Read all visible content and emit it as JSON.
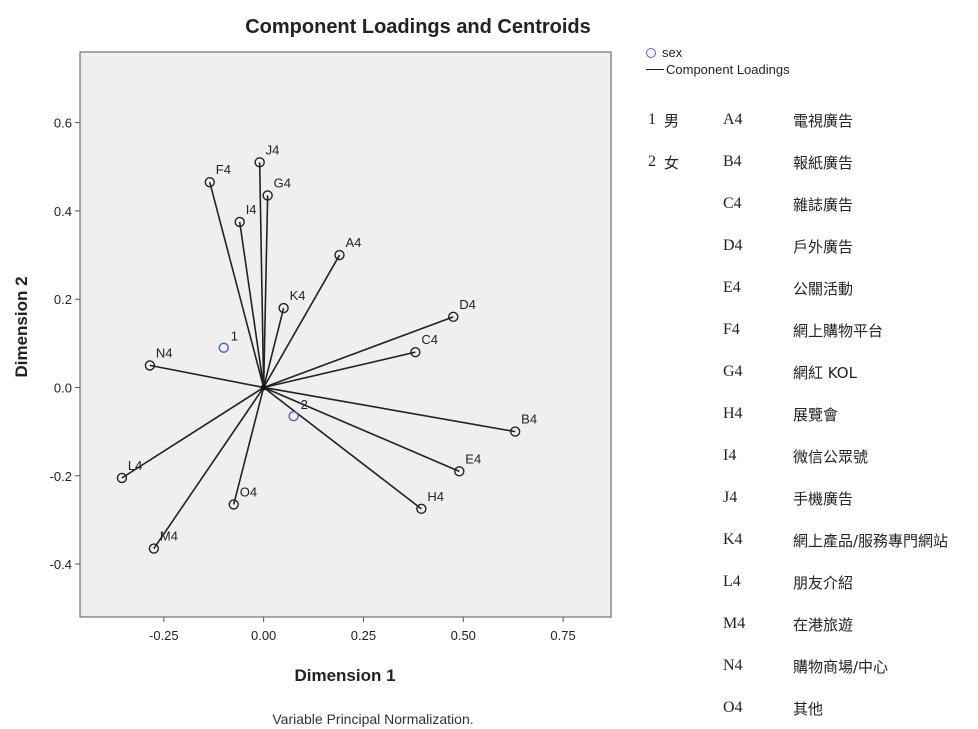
{
  "chart_data": {
    "type": "scatter",
    "title": "Component Loadings and Centroids",
    "xlabel": "Dimension 1",
    "ylabel": "Dimension 2",
    "footnote": "Variable Principal Normalization.",
    "xlim": [
      -0.46,
      0.87
    ],
    "ylim": [
      -0.52,
      0.76
    ],
    "xticks": [
      -0.25,
      0.0,
      0.25,
      0.5,
      0.75
    ],
    "xtick_labels": [
      "-0.25",
      "0.00",
      "0.25",
      "0.50",
      "0.75"
    ],
    "yticks": [
      -0.4,
      -0.2,
      0.0,
      0.2,
      0.4,
      0.6
    ],
    "ytick_labels": [
      "-0.4",
      "-0.2",
      "0.0",
      "0.2",
      "0.4",
      "0.6"
    ],
    "grid": false,
    "legend_position": "right",
    "legend": [
      {
        "label": "sex",
        "marker": "circle",
        "color": "#4a63c8"
      },
      {
        "label": "Component Loadings",
        "marker": "line",
        "color": "#222222"
      }
    ],
    "centroids": [
      {
        "label": "1",
        "x": -0.1,
        "y": 0.09
      },
      {
        "label": "2",
        "x": 0.075,
        "y": -0.065
      }
    ],
    "loadings": [
      {
        "label": "A4",
        "x": 0.19,
        "y": 0.3
      },
      {
        "label": "B4",
        "x": 0.63,
        "y": -0.1
      },
      {
        "label": "C4",
        "x": 0.38,
        "y": 0.08
      },
      {
        "label": "D4",
        "x": 0.475,
        "y": 0.16
      },
      {
        "label": "E4",
        "x": 0.49,
        "y": -0.19
      },
      {
        "label": "F4",
        "x": -0.135,
        "y": 0.465
      },
      {
        "label": "G4",
        "x": 0.01,
        "y": 0.435
      },
      {
        "label": "H4",
        "x": 0.395,
        "y": -0.275
      },
      {
        "label": "I4",
        "x": -0.06,
        "y": 0.375
      },
      {
        "label": "J4",
        "x": -0.01,
        "y": 0.51
      },
      {
        "label": "K4",
        "x": 0.05,
        "y": 0.18
      },
      {
        "label": "L4",
        "x": -0.355,
        "y": -0.205
      },
      {
        "label": "M4",
        "x": -0.275,
        "y": -0.365
      },
      {
        "label": "N4",
        "x": -0.285,
        "y": 0.05
      },
      {
        "label": "O4",
        "x": -0.075,
        "y": -0.265
      }
    ],
    "colors": {
      "plot_bg": "#efefef",
      "frame": "#555555",
      "loading_line": "#222222",
      "centroid_marker": "#4a63c8"
    }
  },
  "side_legend": {
    "sex_label": "sex",
    "loadings_label": "Component Loadings"
  },
  "sex_codes": [
    {
      "code": "1",
      "label": "男"
    },
    {
      "code": "2",
      "label": "女"
    }
  ],
  "variable_codes": [
    {
      "code": "A4",
      "label": "電視廣告"
    },
    {
      "code": "B4",
      "label": "報紙廣告"
    },
    {
      "code": "C4",
      "label": "雜誌廣告"
    },
    {
      "code": "D4",
      "label": "戶外廣告"
    },
    {
      "code": "E4",
      "label": "公關活動"
    },
    {
      "code": "F4",
      "label": "網上購物平台"
    },
    {
      "code": "G4",
      "label": "網紅 KOL"
    },
    {
      "code": "H4",
      "label": "展覽會"
    },
    {
      "code": "I4",
      "label": "微信公眾號"
    },
    {
      "code": "J4",
      "label": "手機廣告"
    },
    {
      "code": "K4",
      "label": "網上產品/服務專門網站"
    },
    {
      "code": "L4",
      "label": "朋友介紹"
    },
    {
      "code": "M4",
      "label": "在港旅遊"
    },
    {
      "code": "N4",
      "label": "購物商場/中心"
    },
    {
      "code": "O4",
      "label": "其他"
    }
  ]
}
